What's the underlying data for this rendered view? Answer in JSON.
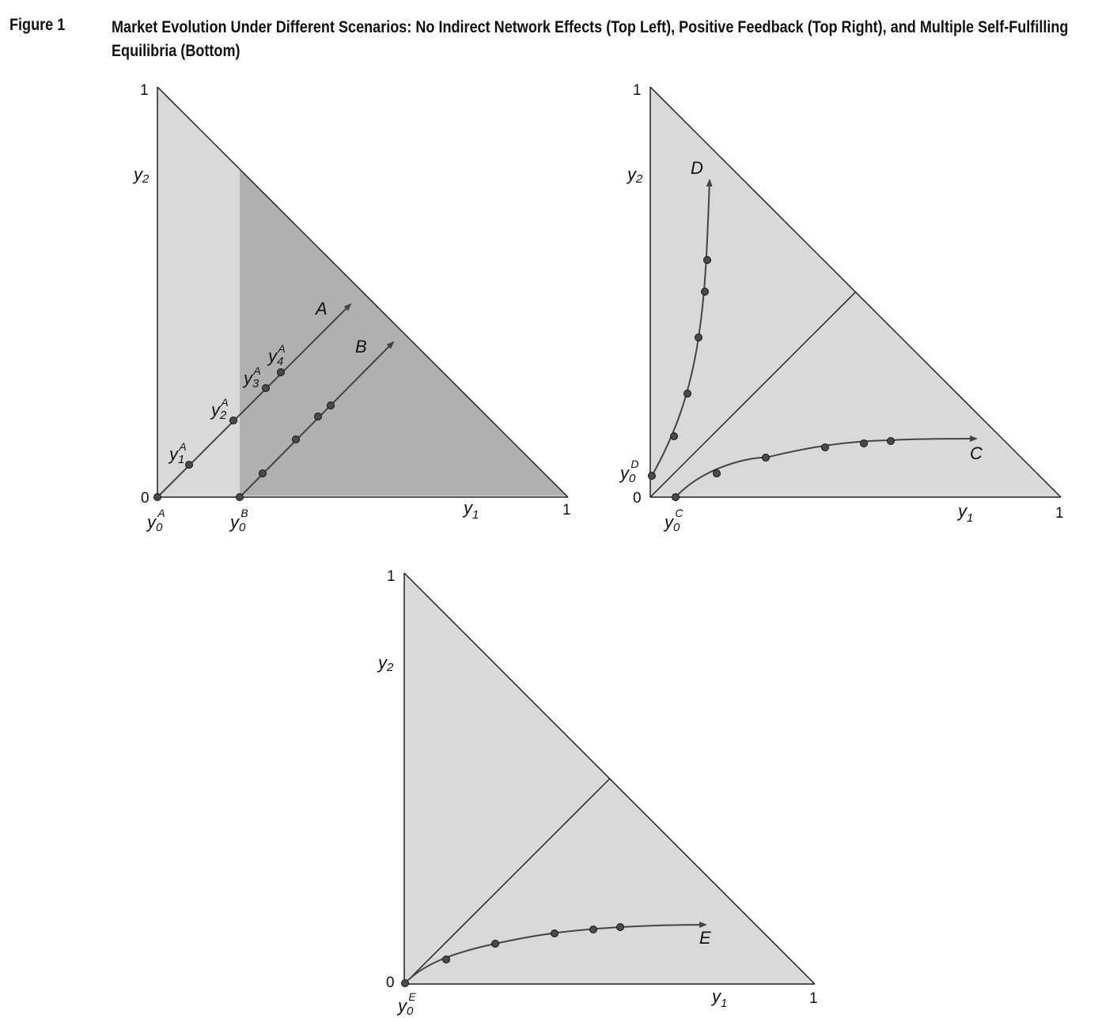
{
  "figure": {
    "label": "Figure 1",
    "title": "Market Evolution Under Different Scenarios: No Indirect Network Effects (Top Left), Positive Feedback (Top Right), and Multiple Self-Fulfilling Equilibria (Bottom)"
  },
  "panels": {
    "top_left": {
      "tick_top": "1",
      "tick_origin": "0",
      "tick_right": "1",
      "y_axis_var": "y",
      "y_axis_sub": "2",
      "x_axis_var": "y",
      "x_axis_sub": "1",
      "path_a_label": "A",
      "path_b_label": "B",
      "start_a": {
        "var": "y",
        "sub": "0",
        "sup": "A"
      },
      "start_b": {
        "var": "y",
        "sub": "0",
        "sup": "B"
      },
      "points_a": [
        {
          "var": "y",
          "sub": "1",
          "sup": "A"
        },
        {
          "var": "y",
          "sub": "2",
          "sup": "A"
        },
        {
          "var": "y",
          "sub": "3",
          "sup": "A"
        },
        {
          "var": "y",
          "sub": "4",
          "sup": "A"
        }
      ]
    },
    "top_right": {
      "tick_top": "1",
      "tick_origin": "0",
      "tick_right": "1",
      "y_axis_var": "y",
      "y_axis_sub": "2",
      "x_axis_var": "y",
      "x_axis_sub": "1",
      "path_c_label": "C",
      "path_d_label": "D",
      "start_c": {
        "var": "y",
        "sub": "0",
        "sup": "C"
      },
      "start_d": {
        "var": "y",
        "sub": "0",
        "sup": "D"
      }
    },
    "bottom": {
      "tick_top": "1",
      "tick_origin": "0",
      "tick_right": "1",
      "y_axis_var": "y",
      "y_axis_sub": "2",
      "x_axis_var": "y",
      "x_axis_sub": "1",
      "path_e_label": "E",
      "start_e": {
        "var": "y",
        "sub": "0",
        "sup": "E"
      }
    }
  },
  "colors": {
    "region_light": "#d9d9d9",
    "region_dark": "#b0b0b0",
    "line": "#222222",
    "path": "#444444",
    "dot_fill": "#4a4a4a"
  }
}
